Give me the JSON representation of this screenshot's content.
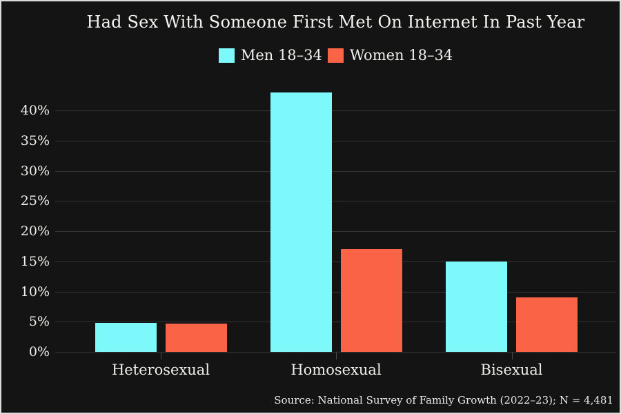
{
  "chart_data": {
    "type": "bar",
    "title": "Had Sex With Someone First Met On Internet In Past Year",
    "categories": [
      "Heterosexual",
      "Homosexual",
      "Bisexual"
    ],
    "series": [
      {
        "name": "Men 18–34",
        "color": "#7DF9FC",
        "values": [
          4.8,
          43,
          15
        ]
      },
      {
        "name": "Women 18–34",
        "color": "#FB6347",
        "values": [
          4.7,
          17,
          9
        ]
      }
    ],
    "xlabel": "",
    "ylabel": "",
    "ylim": [
      0,
      45
    ],
    "yticks": [
      "0%",
      "5%",
      "10%",
      "15%",
      "20%",
      "25%",
      "30%",
      "35%",
      "40%"
    ],
    "grid": true,
    "legend_position": "top-center",
    "source": "Source: National Survey of Family Growth (2022–23); N = 4,481",
    "colors": {
      "background": "#141414",
      "frame_border": "#dcdcdc",
      "gridline": "#343434",
      "text": "#efefef",
      "men_bar": "#7DF9FC",
      "women_bar": "#FB6347"
    }
  }
}
